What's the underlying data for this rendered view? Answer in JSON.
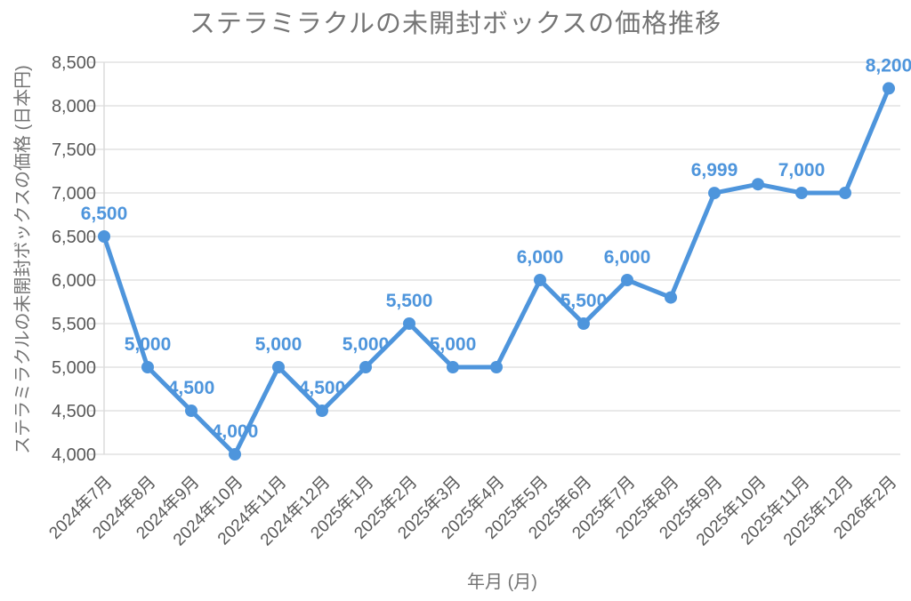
{
  "page": {
    "background": "#ffffff"
  },
  "chart_data": {
    "type": "line",
    "title": "ステラミラクルの未開封ボックスの価格推移",
    "xlabel": "年月 (月)",
    "ylabel": "ステラミラクルの未開封ボックスの価格 (日本円)",
    "categories": [
      "2024年7月",
      "2024年8月",
      "2024年9月",
      "2024年10月",
      "2024年11月",
      "2024年12月",
      "2025年1月",
      "2025年2月",
      "2025年3月",
      "2025年4月",
      "2025年5月",
      "2025年6月",
      "2025年7月",
      "2025年8月",
      "2025年9月",
      "2025年10月",
      "2025年11月",
      "2025年12月",
      "2026年2月"
    ],
    "values": [
      6500,
      5000,
      4500,
      4000,
      5000,
      4500,
      5000,
      5500,
      5000,
      5000,
      6000,
      5500,
      6000,
      5800,
      6999,
      7100,
      7000,
      7000,
      8200
    ],
    "point_labels": [
      "6,500",
      "5,000",
      "4,500",
      "4,000",
      "5,000",
      "4,500",
      "5,000",
      "5,500",
      "5,000",
      null,
      "6,000",
      "5,500",
      "6,000",
      null,
      "6,999",
      null,
      "7,000",
      null,
      "8,200"
    ],
    "ylim": [
      4000,
      8500
    ],
    "ytick_step": 500,
    "ytick_labels": [
      "4,000",
      "4,500",
      "5,000",
      "5,500",
      "6,000",
      "6,500",
      "7,000",
      "7,500",
      "8,000",
      "8,500"
    ],
    "grid": "horizontal",
    "legend": "none",
    "colors": {
      "line": "#4e95dc",
      "marker": "#4e95dc",
      "point_label": "#4e95dc",
      "grid": "#e2e2e2",
      "axis_line": "#d9d9d9",
      "tick_text": "#595959",
      "title_text": "#757575"
    }
  }
}
